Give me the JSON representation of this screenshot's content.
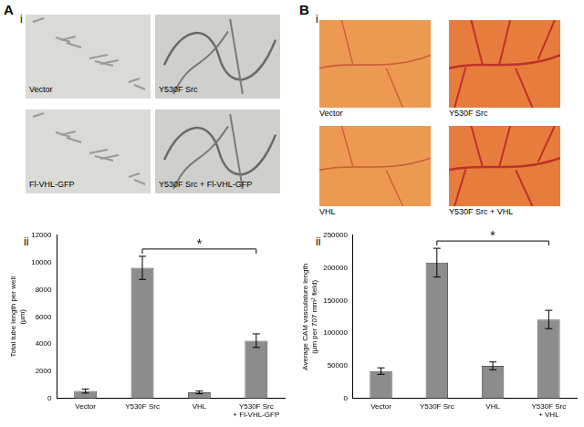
{
  "panels": [
    {
      "label": "A",
      "images_label": "i",
      "chart_label": "ii",
      "images": [
        "Vector",
        "Y530F Src",
        "Fl-VHL-GFP",
        "Y530F Src + Fl-VHL-GFP"
      ]
    },
    {
      "label": "B",
      "images_label": "i",
      "chart_label": "ii",
      "images": [
        "Vector",
        "Y530F Src",
        "VHL",
        "Y530F Src + VHL"
      ]
    }
  ],
  "chart_data": [
    {
      "type": "bar",
      "y_label": "Total tube length per well (µm)",
      "categories": [
        "Vector",
        "Y530F Src",
        "VHL",
        "Y530F Src + Fl-VHL-GFP"
      ],
      "values": [
        550,
        9600,
        450,
        4250
      ],
      "errors": [
        150,
        850,
        100,
        500
      ],
      "color": "#8c8c8c",
      "ylim": [
        0,
        12000
      ],
      "yticks": [
        0,
        2000,
        4000,
        6000,
        8000,
        10000,
        12000
      ],
      "grid": false,
      "significance": [
        {
          "from": "Y530F Src",
          "to": "Y530F Src + Fl-VHL-GFP",
          "label": "*"
        }
      ]
    },
    {
      "type": "bar",
      "y_label": "Average CAM vasculature length (µm per 707 mm² field)",
      "categories": [
        "Vector",
        "Y530F Src",
        "VHL",
        "Y530F Src + VHL"
      ],
      "values": [
        42000,
        208000,
        50000,
        121000
      ],
      "errors": [
        5000,
        22000,
        6000,
        14000
      ],
      "color": "#8c8c8c",
      "ylim": [
        0,
        250000
      ],
      "yticks": [
        0,
        50000,
        100000,
        150000,
        200000,
        250000
      ],
      "grid": false,
      "significance": [
        {
          "from": "Y530F Src",
          "to": "Y530F Src + VHL",
          "label": "*"
        }
      ]
    }
  ]
}
